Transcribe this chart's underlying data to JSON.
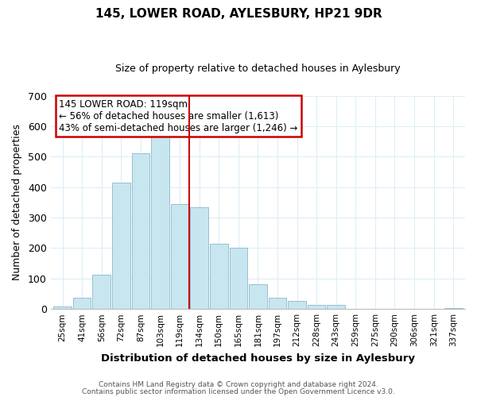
{
  "title": "145, LOWER ROAD, AYLESBURY, HP21 9DR",
  "subtitle": "Size of property relative to detached houses in Aylesbury",
  "xlabel": "Distribution of detached houses by size in Aylesbury",
  "ylabel": "Number of detached properties",
  "categories": [
    "25sqm",
    "41sqm",
    "56sqm",
    "72sqm",
    "87sqm",
    "103sqm",
    "119sqm",
    "134sqm",
    "150sqm",
    "165sqm",
    "181sqm",
    "197sqm",
    "212sqm",
    "228sqm",
    "243sqm",
    "259sqm",
    "275sqm",
    "290sqm",
    "306sqm",
    "321sqm",
    "337sqm"
  ],
  "values": [
    8,
    38,
    113,
    415,
    510,
    575,
    345,
    333,
    213,
    202,
    80,
    37,
    27,
    13,
    13,
    0,
    0,
    0,
    0,
    0,
    2
  ],
  "bar_color": "#c8e6f0",
  "bar_edge_color": "#8ab8cc",
  "highlight_index": 6,
  "highlight_line_color": "#cc0000",
  "ylim": [
    0,
    700
  ],
  "yticks": [
    0,
    100,
    200,
    300,
    400,
    500,
    600,
    700
  ],
  "annotation_title": "145 LOWER ROAD: 119sqm",
  "annotation_line1": "← 56% of detached houses are smaller (1,613)",
  "annotation_line2": "43% of semi-detached houses are larger (1,246) →",
  "annotation_box_color": "#ffffff",
  "annotation_box_edge": "#cc0000",
  "footer_line1": "Contains HM Land Registry data © Crown copyright and database right 2024.",
  "footer_line2": "Contains public sector information licensed under the Open Government Licence v3.0.",
  "background_color": "#ffffff",
  "grid_color": "#ddeef5"
}
